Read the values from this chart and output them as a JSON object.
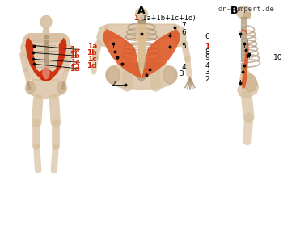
{
  "watermark": "dr-gumpert.de",
  "section_A_label": "A",
  "section_B_label": "B",
  "background_color": "#ffffff",
  "border_color": "#bbbbbb",
  "muscle_red": "#cc2200",
  "muscle_orange": "#dd5522",
  "muscle_highlight": "#f5c8a0",
  "skeleton_base": "#d8c0a0",
  "skeleton_mid": "#c4a882",
  "skeleton_dark": "#a89070",
  "label_fontsize": 6.5,
  "watermark_fontsize": 6.5,
  "section_fontsize": 9,
  "red_labels": [
    "1a",
    "1b",
    "1c",
    "1d"
  ],
  "red_label_1_sub": "(1a+1b+1c+1d)"
}
